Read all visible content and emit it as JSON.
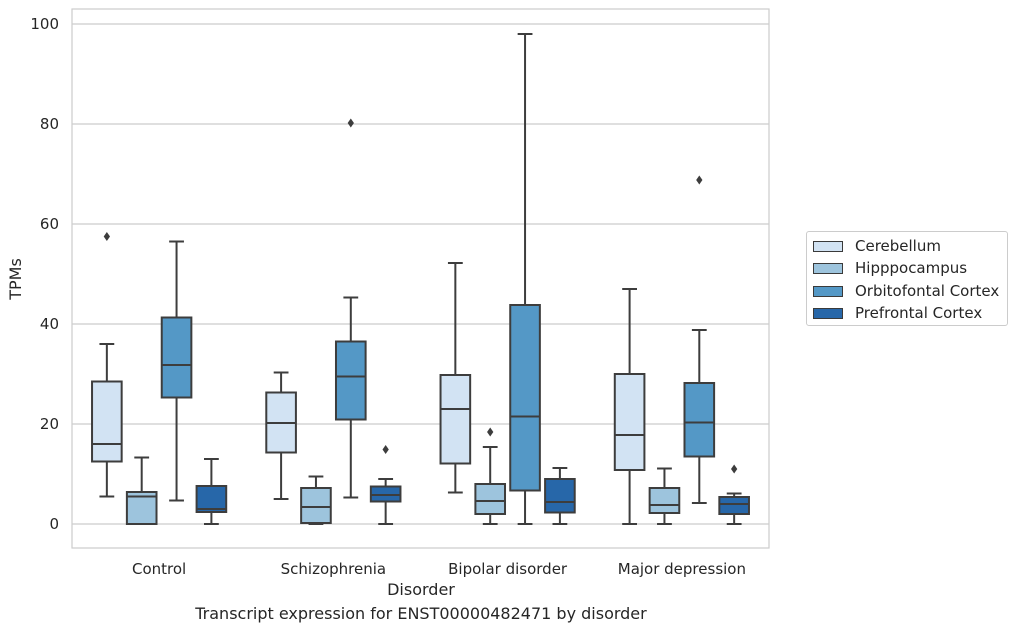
{
  "caption": "Transcript expression for ENST00000482471 by disorder",
  "chart_data": {
    "type": "box",
    "xlabel": "Disorder",
    "ylabel": "TPMs",
    "ylim": [
      -4.5,
      103
    ],
    "yticks": [
      0,
      20,
      40,
      60,
      80,
      100
    ],
    "grid": true,
    "legend_position": "right",
    "categories": [
      "Control",
      "Schizophrenia",
      "Bipolar disorder",
      "Major depression"
    ],
    "series": [
      {
        "name": "Cerebellum",
        "color": "#d2e3f3",
        "boxes": [
          {
            "whislo": 5.5,
            "q1": 12.5,
            "med": 16,
            "q3": 28.5,
            "whishi": 36,
            "fliers": [
              57.5
            ]
          },
          {
            "whislo": 5,
            "q1": 14.3,
            "med": 20.2,
            "q3": 26.3,
            "whishi": 30.3,
            "fliers": []
          },
          {
            "whislo": 6.3,
            "q1": 12.1,
            "med": 23,
            "q3": 29.8,
            "whishi": 52.2,
            "fliers": []
          },
          {
            "whislo": 0,
            "q1": 10.8,
            "med": 17.8,
            "q3": 30,
            "whishi": 47,
            "fliers": []
          }
        ]
      },
      {
        "name": "Hipppocampus",
        "color": "#9dc4dd",
        "boxes": [
          {
            "whislo": 0,
            "q1": 0,
            "med": 5.5,
            "q3": 6.4,
            "whishi": 13.3,
            "fliers": []
          },
          {
            "whislo": 0,
            "q1": 0.2,
            "med": 3.4,
            "q3": 7.2,
            "whishi": 9.5,
            "fliers": []
          },
          {
            "whislo": 0,
            "q1": 2,
            "med": 4.6,
            "q3": 8,
            "whishi": 15.4,
            "fliers": [
              18.4
            ]
          },
          {
            "whislo": 0,
            "q1": 2.2,
            "med": 3.8,
            "q3": 7.2,
            "whishi": 11.1,
            "fliers": []
          }
        ]
      },
      {
        "name": "Orbitofontal Cortex",
        "color": "#5498c6",
        "boxes": [
          {
            "whislo": 4.7,
            "q1": 25.3,
            "med": 31.8,
            "q3": 41.3,
            "whishi": 56.5,
            "fliers": []
          },
          {
            "whislo": 5.3,
            "q1": 20.9,
            "med": 29.5,
            "q3": 36.5,
            "whishi": 45.3,
            "fliers": [
              80.2
            ]
          },
          {
            "whislo": 0,
            "q1": 6.7,
            "med": 21.5,
            "q3": 43.8,
            "whishi": 98,
            "fliers": []
          },
          {
            "whislo": 4.2,
            "q1": 13.5,
            "med": 20.3,
            "q3": 28.2,
            "whishi": 38.8,
            "fliers": [
              68.8
            ]
          }
        ]
      },
      {
        "name": "Prefrontal Cortex",
        "color": "#2767a9",
        "boxes": [
          {
            "whislo": 0,
            "q1": 2.4,
            "med": 3,
            "q3": 7.6,
            "whishi": 13,
            "fliers": []
          },
          {
            "whislo": 0,
            "q1": 4.5,
            "med": 5.8,
            "q3": 7.5,
            "whishi": 9,
            "fliers": [
              14.9
            ]
          },
          {
            "whislo": 0,
            "q1": 2.3,
            "med": 4.4,
            "q3": 9,
            "whishi": 11.2,
            "fliers": []
          },
          {
            "whislo": 0,
            "q1": 2,
            "med": 4,
            "q3": 5.4,
            "whishi": 6.1,
            "fliers": [
              11
            ]
          }
        ]
      }
    ]
  }
}
